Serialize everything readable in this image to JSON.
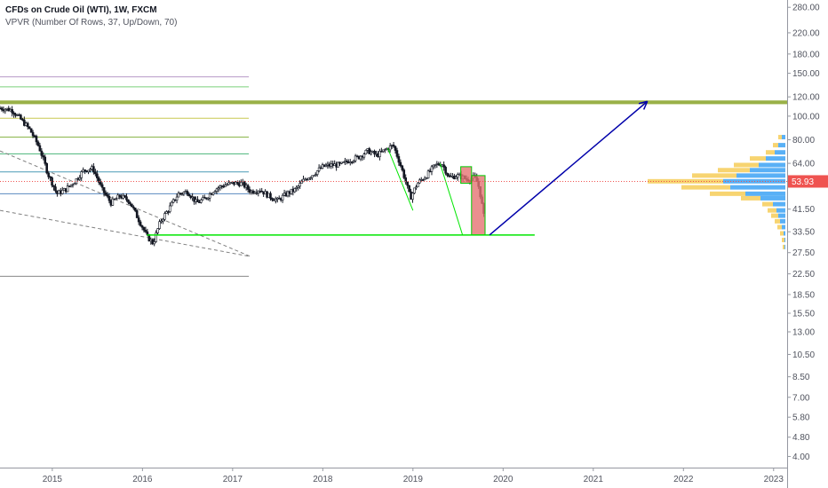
{
  "legend": {
    "title": "CFDs on Crude Oil (WTI), 1W, FXCM",
    "indicator": "VPVR (Number Of Rows, 37, Up/Down, 70)"
  },
  "price_badge": {
    "text": "53.93",
    "value": 53.93,
    "color": "#ef5350"
  },
  "colors": {
    "candle": "#131722",
    "support_line": "#00e600",
    "target_arrow": "#0000aa",
    "highlight_box": "#e57373",
    "highlight_border": "#00c800",
    "vp_up": "#2196f3",
    "vp_down": "#f4c542",
    "resistance_band": "#8fa834",
    "fib_dashed": "#808080"
  },
  "chart_data": {
    "type": "candlestick",
    "symbol": "CFDs on Crude Oil (WTI)",
    "interval": "1W",
    "source": "FXCM",
    "y_scale": "log",
    "ylim": [
      3.6,
      300
    ],
    "xlim": [
      2014.42,
      2023.15
    ],
    "y_ticks": [
      "280.00",
      "220.00",
      "180.00",
      "150.00",
      "120.00",
      "100.00",
      "80.00",
      "64.00",
      "53.93",
      "41.50",
      "33.50",
      "27.50",
      "22.50",
      "18.50",
      "15.50",
      "13.00",
      "10.50",
      "8.50",
      "7.00",
      "5.80",
      "4.80",
      "4.00"
    ],
    "y_tick_values": [
      280,
      220,
      180,
      150,
      120,
      100,
      80,
      64,
      53.93,
      41.5,
      33.5,
      27.5,
      22.5,
      18.5,
      15.5,
      13,
      10.5,
      8.5,
      7,
      5.8,
      4.8,
      4
    ],
    "x_ticks": [
      "2015",
      "2016",
      "2017",
      "2018",
      "2019",
      "2020",
      "2021",
      "2022",
      "2023"
    ],
    "x_tick_values": [
      2015,
      2016,
      2017,
      2018,
      2019,
      2020,
      2021,
      2022,
      2023
    ],
    "price_path": [
      [
        2014.42,
        108
      ],
      [
        2014.55,
        106
      ],
      [
        2014.65,
        97
      ],
      [
        2014.75,
        88
      ],
      [
        2014.85,
        75
      ],
      [
        2014.95,
        58
      ],
      [
        2015.05,
        48
      ],
      [
        2015.15,
        50
      ],
      [
        2015.25,
        54
      ],
      [
        2015.35,
        60
      ],
      [
        2015.45,
        61
      ],
      [
        2015.55,
        50
      ],
      [
        2015.65,
        44
      ],
      [
        2015.75,
        47
      ],
      [
        2015.85,
        45
      ],
      [
        2015.95,
        38
      ],
      [
        2016.05,
        32
      ],
      [
        2016.12,
        30
      ],
      [
        2016.2,
        37
      ],
      [
        2016.3,
        42
      ],
      [
        2016.4,
        48
      ],
      [
        2016.5,
        49
      ],
      [
        2016.6,
        44
      ],
      [
        2016.7,
        46
      ],
      [
        2016.8,
        50
      ],
      [
        2016.9,
        52
      ],
      [
        2017.0,
        53
      ],
      [
        2017.1,
        53
      ],
      [
        2017.2,
        49
      ],
      [
        2017.3,
        50
      ],
      [
        2017.4,
        47
      ],
      [
        2017.5,
        45
      ],
      [
        2017.6,
        48
      ],
      [
        2017.7,
        50
      ],
      [
        2017.8,
        55
      ],
      [
        2017.9,
        58
      ],
      [
        2018.0,
        62
      ],
      [
        2018.1,
        63
      ],
      [
        2018.2,
        63
      ],
      [
        2018.3,
        66
      ],
      [
        2018.4,
        68
      ],
      [
        2018.5,
        72
      ],
      [
        2018.6,
        69
      ],
      [
        2018.7,
        73
      ],
      [
        2018.78,
        76
      ],
      [
        2018.88,
        60
      ],
      [
        2018.97,
        46
      ],
      [
        2019.05,
        53
      ],
      [
        2019.15,
        57
      ],
      [
        2019.25,
        63
      ],
      [
        2019.32,
        64
      ],
      [
        2019.4,
        56
      ],
      [
        2019.5,
        57
      ],
      [
        2019.6,
        55
      ],
      [
        2019.68,
        56
      ],
      [
        2019.72,
        53
      ],
      [
        2019.75,
        47
      ],
      [
        2019.78,
        40
      ],
      [
        2019.8,
        36
      ]
    ],
    "horizontal_levels": [
      {
        "value": 145,
        "x_start": 2014.42,
        "x_end": 2017.18,
        "color": "#b79ac8"
      },
      {
        "value": 132,
        "x_start": 2014.42,
        "x_end": 2017.18,
        "color": "#7ad17a"
      },
      {
        "value": 98,
        "x_start": 2014.42,
        "x_end": 2017.18,
        "color": "#c8c850"
      },
      {
        "value": 82,
        "x_start": 2014.42,
        "x_end": 2017.18,
        "color": "#8ab54a"
      },
      {
        "value": 70,
        "x_start": 2014.42,
        "x_end": 2017.18,
        "color": "#4ab57a"
      },
      {
        "value": 59,
        "x_start": 2014.42,
        "x_end": 2017.18,
        "color": "#4a9ab5"
      },
      {
        "value": 48,
        "x_start": 2014.42,
        "x_end": 2017.18,
        "color": "#5a8ac0"
      },
      {
        "value": 22,
        "x_start": 2014.42,
        "x_end": 2017.18,
        "color": "#888888"
      }
    ],
    "resistance_band": {
      "low": 112,
      "high": 116
    },
    "support_level": {
      "value": 32.5,
      "x_start": 2016.05,
      "x_end": 2020.35
    },
    "zigzag_lines": [
      [
        [
          2018.72,
          74
        ],
        [
          2019.0,
          41
        ]
      ],
      [
        [
          2019.3,
          64
        ],
        [
          2019.55,
          32.5
        ]
      ]
    ],
    "highlight_boxes": [
      {
        "x1": 2019.53,
        "x2": 2019.65,
        "y1": 53,
        "y2": 62
      },
      {
        "x1": 2019.65,
        "x2": 2019.8,
        "y1": 32.5,
        "y2": 57
      }
    ],
    "dashed_lines": [
      [
        [
          2014.42,
          72
        ],
        [
          2017.2,
          26.5
        ]
      ],
      [
        [
          2014.42,
          41
        ],
        [
          2017.2,
          26.5
        ]
      ]
    ],
    "target_arrow": {
      "from": [
        2019.85,
        32.5
      ],
      "to": [
        2021.6,
        115
      ]
    },
    "current_price": 53.93,
    "volume_profile": [
      {
        "price": 82,
        "up": 4,
        "down": 4
      },
      {
        "price": 76,
        "up": 8,
        "down": 6
      },
      {
        "price": 71,
        "up": 12,
        "down": 10
      },
      {
        "price": 67,
        "up": 22,
        "down": 18
      },
      {
        "price": 63,
        "up": 30,
        "down": 28
      },
      {
        "price": 60,
        "up": 40,
        "down": 36
      },
      {
        "price": 57,
        "up": 55,
        "down": 50
      },
      {
        "price": 54,
        "up": 70,
        "down": 85
      },
      {
        "price": 51,
        "up": 62,
        "down": 55
      },
      {
        "price": 48,
        "up": 45,
        "down": 40
      },
      {
        "price": 46,
        "up": 28,
        "down": 22
      },
      {
        "price": 43.5,
        "up": 14,
        "down": 12
      },
      {
        "price": 41,
        "up": 10,
        "down": 10
      },
      {
        "price": 39,
        "up": 8,
        "down": 8
      },
      {
        "price": 37,
        "up": 6,
        "down": 6
      },
      {
        "price": 35,
        "up": 4,
        "down": 5
      },
      {
        "price": 33,
        "up": 2,
        "down": 4
      },
      {
        "price": 31,
        "up": 1,
        "down": 3
      },
      {
        "price": 29,
        "up": 1,
        "down": 2
      }
    ]
  }
}
